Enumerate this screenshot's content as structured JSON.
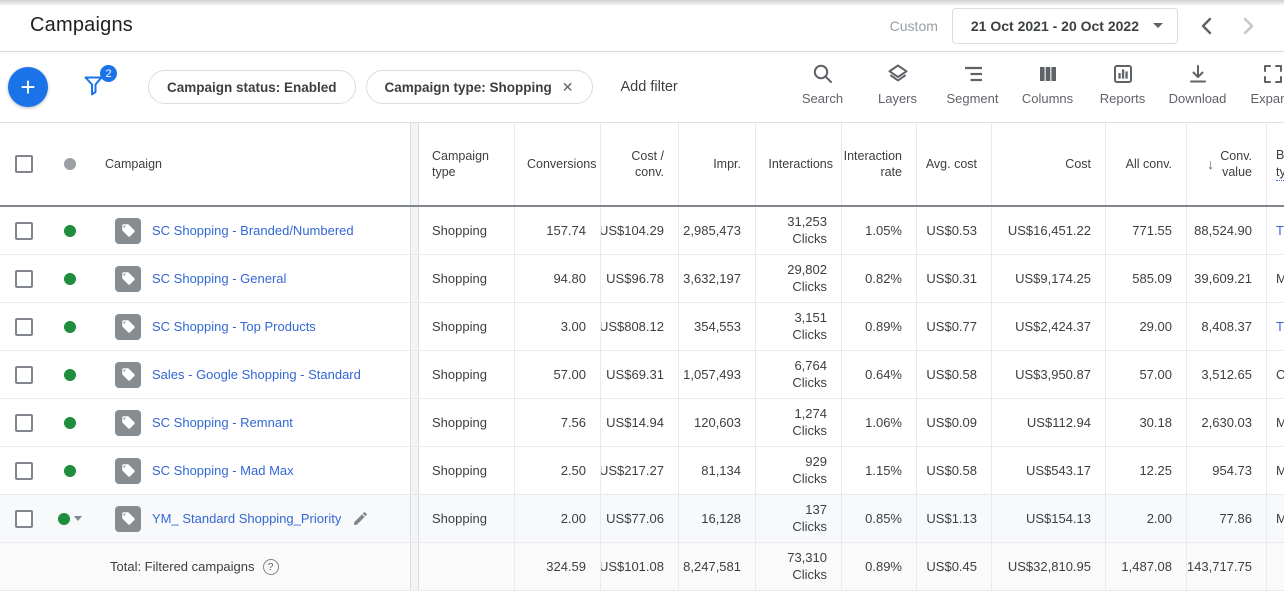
{
  "page": {
    "title": "Campaigns"
  },
  "date_bar": {
    "preset_label": "Custom",
    "range": "21 Oct 2021 - 20 Oct 2022"
  },
  "filter_bar": {
    "add_icon": "+",
    "filter_count": "2",
    "chips": [
      {
        "label": "Campaign status: Enabled",
        "removable": false
      },
      {
        "label": "Campaign type: Shopping",
        "removable": true
      }
    ],
    "close_icon": "✕",
    "add_filter_label": "Add filter",
    "tools": [
      {
        "icon": "search-icon",
        "label": "Search"
      },
      {
        "icon": "layers-icon",
        "label": "Layers"
      },
      {
        "icon": "segment-icon",
        "label": "Segment"
      },
      {
        "icon": "columns-icon",
        "label": "Columns"
      },
      {
        "icon": "reports-icon",
        "label": "Reports"
      },
      {
        "icon": "download-icon",
        "label": "Download"
      },
      {
        "icon": "expand-icon",
        "label": "Expand"
      }
    ]
  },
  "icons": {
    "sort_desc": "↓",
    "help": "?"
  },
  "colors": {
    "accent_blue": "#1a73e8",
    "link_blue": "#3367d6",
    "enabled_green": "#1e8e3e"
  },
  "table": {
    "columns": {
      "campaign": "Campaign",
      "campaign_type": "Campaign type",
      "conversions": "Conversions",
      "cost_per_conv_line1": "Cost /",
      "cost_per_conv_line2": "conv.",
      "impressions": "Impr.",
      "interactions": "Interactions",
      "interaction_rate_line1": "Interaction",
      "interaction_rate_line2": "rate",
      "avg_cost": "Avg. cost",
      "cost": "Cost",
      "all_conv": "All conv.",
      "conv_value_line1": "Conv.",
      "conv_value_line2": "value",
      "bid_strategy_partial_line1": "B",
      "bid_strategy_partial_line2": "ty"
    },
    "rows": [
      {
        "status": "enabled",
        "name": "SC Shopping - Branded/Numbered",
        "type": "Shopping",
        "conversions": "157.74",
        "cost_per_conv": "US$104.29",
        "impr": "2,985,473",
        "interactions": "31,253",
        "interactions_unit": "Clicks",
        "interaction_rate": "1.05%",
        "avg_cost": "US$0.53",
        "cost": "US$16,451.22",
        "all_conv": "771.55",
        "conv_value": "88,524.90",
        "bid_partial": "T",
        "bid_is_link": true,
        "expandable": false,
        "editable": false,
        "highlighted": false
      },
      {
        "status": "enabled",
        "name": "SC Shopping - General",
        "type": "Shopping",
        "conversions": "94.80",
        "cost_per_conv": "US$96.78",
        "impr": "3,632,197",
        "interactions": "29,802",
        "interactions_unit": "Clicks",
        "interaction_rate": "0.82%",
        "avg_cost": "US$0.31",
        "cost": "US$9,174.25",
        "all_conv": "585.09",
        "conv_value": "39,609.21",
        "bid_partial": "M",
        "bid_is_link": false,
        "expandable": false,
        "editable": false,
        "highlighted": false
      },
      {
        "status": "enabled",
        "name": "SC Shopping - Top Products",
        "type": "Shopping",
        "conversions": "3.00",
        "cost_per_conv": "US$808.12",
        "impr": "354,553",
        "interactions": "3,151",
        "interactions_unit": "Clicks",
        "interaction_rate": "0.89%",
        "avg_cost": "US$0.77",
        "cost": "US$2,424.37",
        "all_conv": "29.00",
        "conv_value": "8,408.37",
        "bid_partial": "T",
        "bid_is_link": true,
        "expandable": false,
        "editable": false,
        "highlighted": false
      },
      {
        "status": "enabled",
        "name": "Sales - Google Shopping - Standard",
        "type": "Shopping",
        "conversions": "57.00",
        "cost_per_conv": "US$69.31",
        "impr": "1,057,493",
        "interactions": "6,764",
        "interactions_unit": "Clicks",
        "interaction_rate": "0.64%",
        "avg_cost": "US$0.58",
        "cost": "US$3,950.87",
        "all_conv": "57.00",
        "conv_value": "3,512.65",
        "bid_partial": "C",
        "bid_is_link": false,
        "expandable": false,
        "editable": false,
        "highlighted": false
      },
      {
        "status": "enabled",
        "name": "SC Shopping - Remnant",
        "type": "Shopping",
        "conversions": "7.56",
        "cost_per_conv": "US$14.94",
        "impr": "120,603",
        "interactions": "1,274",
        "interactions_unit": "Clicks",
        "interaction_rate": "1.06%",
        "avg_cost": "US$0.09",
        "cost": "US$112.94",
        "all_conv": "30.18",
        "conv_value": "2,630.03",
        "bid_partial": "M",
        "bid_is_link": false,
        "expandable": false,
        "editable": false,
        "highlighted": false
      },
      {
        "status": "enabled",
        "name": "SC Shopping - Mad Max",
        "type": "Shopping",
        "conversions": "2.50",
        "cost_per_conv": "US$217.27",
        "impr": "81,134",
        "interactions": "929",
        "interactions_unit": "Clicks",
        "interaction_rate": "1.15%",
        "avg_cost": "US$0.58",
        "cost": "US$543.17",
        "all_conv": "12.25",
        "conv_value": "954.73",
        "bid_partial": "M",
        "bid_is_link": false,
        "expandable": false,
        "editable": false,
        "highlighted": false
      },
      {
        "status": "enabled",
        "name": "YM_ Standard Shopping_Priority",
        "type": "Shopping",
        "conversions": "2.00",
        "cost_per_conv": "US$77.06",
        "impr": "16,128",
        "interactions": "137",
        "interactions_unit": "Clicks",
        "interaction_rate": "0.85%",
        "avg_cost": "US$1.13",
        "cost": "US$154.13",
        "all_conv": "2.00",
        "conv_value": "77.86",
        "bid_partial": "M",
        "bid_is_link": false,
        "expandable": true,
        "editable": true,
        "highlighted": true
      }
    ],
    "total_row": {
      "label": "Total: Filtered campaigns",
      "conversions": "324.59",
      "cost_per_conv": "US$101.08",
      "impr": "8,247,581",
      "interactions": "73,310",
      "interactions_unit": "Clicks",
      "interaction_rate": "0.89%",
      "avg_cost": "US$0.45",
      "cost": "US$32,810.95",
      "all_conv": "1,487.08",
      "conv_value": "143,717.75"
    }
  }
}
